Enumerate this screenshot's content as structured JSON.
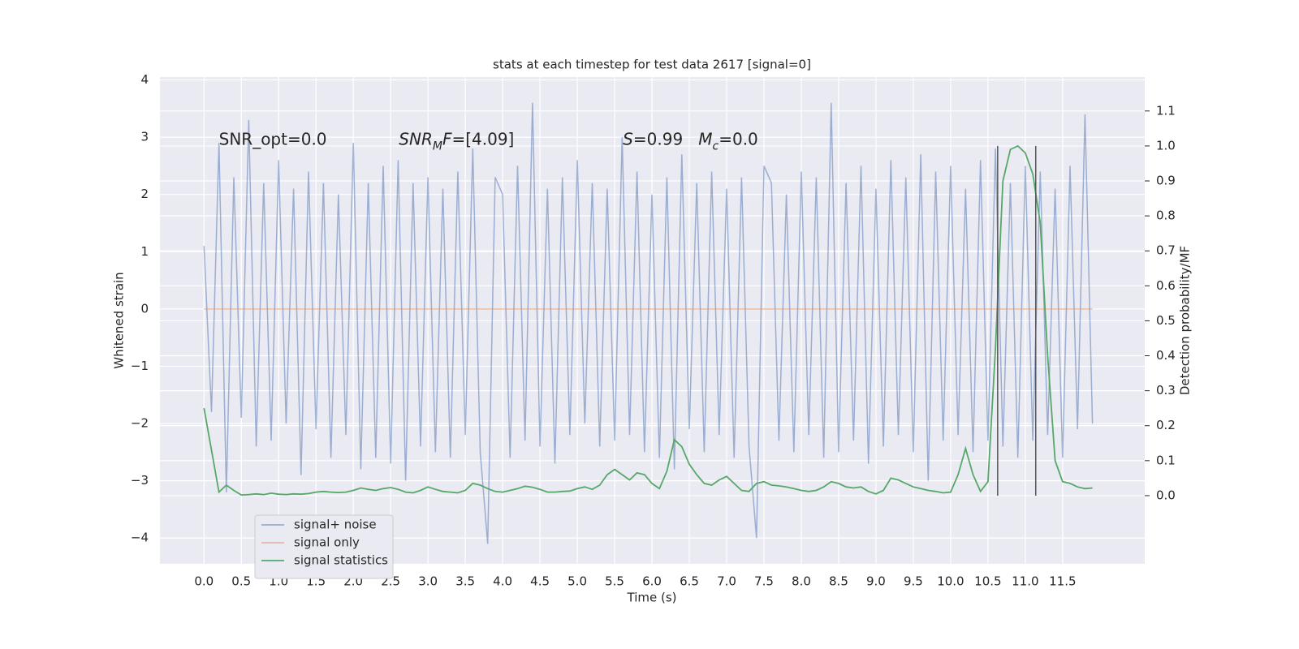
{
  "chart_data": {
    "type": "line",
    "title": "stats at each timestep for test data 2617 [signal=0]",
    "xlabel": "Time (s)",
    "ylabel": "Whitened strain",
    "y2label": "Detection probability/MF",
    "xlim": [
      -0.59,
      12.6
    ],
    "ylim": [
      -4.45,
      4.05
    ],
    "y2lim": [
      -0.195,
      1.197
    ],
    "xticks": [
      {
        "value": 0,
        "label": "0.0"
      },
      0.5,
      {
        "value": 1,
        "label": "1.0"
      },
      1.5,
      {
        "value": 2,
        "label": "2.0"
      },
      2.5,
      {
        "value": 3,
        "label": "3.0"
      },
      3.5,
      {
        "value": 4,
        "label": "4.0"
      },
      4.5,
      {
        "value": 5,
        "label": "5.0"
      },
      5.5,
      {
        "value": 6,
        "label": "6.0"
      },
      6.5,
      {
        "value": 7,
        "label": "7.0"
      },
      7.5,
      {
        "value": 8,
        "label": "8.0"
      },
      8.5,
      {
        "value": 9,
        "label": "9.0"
      },
      9.5,
      {
        "value": 10,
        "label": "10.0"
      },
      10.5,
      {
        "value": 11,
        "label": "11.0"
      },
      11.5
    ],
    "yticks": [
      {
        "value": -4,
        "label": "−4"
      },
      {
        "value": -3,
        "label": "−3"
      },
      {
        "value": -2,
        "label": "−2"
      },
      {
        "value": -1,
        "label": "−1"
      },
      0,
      1,
      2,
      3,
      4
    ],
    "y2ticks": [
      {
        "value": 0,
        "label": "0.0"
      },
      0.1,
      0.2,
      0.3,
      0.4,
      0.5,
      0.6,
      0.7,
      0.8,
      0.9,
      {
        "value": 1,
        "label": "1.0"
      },
      1.1
    ],
    "grid": true,
    "legend": "lower left",
    "x": [
      0.0,
      0.1,
      0.2,
      0.3,
      0.4,
      0.5,
      0.6,
      0.7,
      0.8,
      0.9,
      1.0,
      1.1,
      1.2,
      1.3,
      1.4,
      1.5,
      1.6,
      1.7,
      1.8,
      1.9,
      2.0,
      2.1,
      2.2,
      2.3,
      2.4,
      2.5,
      2.6,
      2.7,
      2.8,
      2.9,
      3.0,
      3.1,
      3.2,
      3.3,
      3.4,
      3.5,
      3.6,
      3.7,
      3.8,
      3.9,
      4.0,
      4.1,
      4.2,
      4.3,
      4.4,
      4.5,
      4.6,
      4.7,
      4.8,
      4.9,
      5.0,
      5.1,
      5.2,
      5.3,
      5.4,
      5.5,
      5.6,
      5.7,
      5.8,
      5.9,
      6.0,
      6.1,
      6.2,
      6.3,
      6.4,
      6.5,
      6.6,
      6.7,
      6.8,
      6.9,
      7.0,
      7.1,
      7.2,
      7.3,
      7.4,
      7.5,
      7.6,
      7.7,
      7.8,
      7.9,
      8.0,
      8.1,
      8.2,
      8.3,
      8.4,
      8.5,
      8.6,
      8.7,
      8.8,
      8.9,
      9.0,
      9.1,
      9.2,
      9.3,
      9.4,
      9.5,
      9.6,
      9.7,
      9.8,
      9.9,
      10.0,
      10.1,
      10.2,
      10.3,
      10.4,
      10.5,
      10.6,
      10.7,
      10.8,
      10.9,
      11.0,
      11.1,
      11.2,
      11.3,
      11.4,
      11.5,
      11.6,
      11.7,
      11.8,
      11.9
    ],
    "series": [
      {
        "name": "signal+ noise",
        "color": "#4c72b0",
        "opacity": 0.5,
        "values": [
          1.1,
          -1.8,
          2.9,
          -3.2,
          2.3,
          -1.9,
          3.3,
          -2.4,
          2.2,
          -2.3,
          2.6,
          -2.0,
          2.1,
          -2.9,
          2.4,
          -2.1,
          2.2,
          -2.6,
          2.0,
          -2.2,
          2.9,
          -2.8,
          2.2,
          -2.6,
          2.5,
          -2.7,
          2.6,
          -3.0,
          2.2,
          -2.4,
          2.3,
          -2.5,
          2.1,
          -2.6,
          2.4,
          -2.2,
          2.8,
          -2.5,
          -4.1,
          2.3,
          2.0,
          -2.6,
          2.5,
          -2.3,
          3.6,
          -2.4,
          2.1,
          -2.7,
          2.3,
          -2.2,
          2.6,
          -2.0,
          2.2,
          -2.4,
          2.1,
          -2.3,
          3.0,
          -2.2,
          2.4,
          -2.5,
          2.0,
          -2.6,
          2.3,
          -2.8,
          2.7,
          -2.1,
          2.2,
          -2.5,
          2.4,
          -2.2,
          2.1,
          -2.6,
          2.3,
          -2.4,
          -4.0,
          2.5,
          2.2,
          -2.3,
          2.0,
          -2.5,
          2.4,
          -2.2,
          2.3,
          -2.6,
          3.6,
          -2.5,
          2.2,
          -2.3,
          2.5,
          -2.7,
          2.1,
          -2.4,
          2.6,
          -2.2,
          2.3,
          -2.5,
          2.7,
          -3.0,
          2.4,
          -2.3,
          2.5,
          -2.2,
          2.1,
          -2.5,
          2.6,
          -2.3,
          2.8,
          -2.4,
          2.2,
          -2.6,
          2.5,
          -2.3,
          2.4,
          -2.2,
          2.1,
          -2.6,
          2.5,
          -2.1,
          3.4,
          -2.0
        ]
      },
      {
        "name": "signal only",
        "color": "#dd8452",
        "opacity": 0.5,
        "x": [
          0.0,
          11.9
        ],
        "values": [
          0,
          0
        ]
      },
      {
        "name": "signal statistics",
        "color": "#55a868",
        "opacity": 1,
        "axis": "y2",
        "values": [
          0.25,
          0.13,
          0.01,
          0.03,
          0.015,
          0.002,
          0.003,
          0.005,
          0.003,
          0.007,
          0.004,
          0.003,
          0.005,
          0.004,
          0.006,
          0.01,
          0.012,
          0.01,
          0.009,
          0.01,
          0.015,
          0.022,
          0.018,
          0.015,
          0.02,
          0.023,
          0.018,
          0.01,
          0.008,
          0.015,
          0.025,
          0.018,
          0.012,
          0.01,
          0.008,
          0.015,
          0.035,
          0.03,
          0.02,
          0.012,
          0.01,
          0.015,
          0.02,
          0.027,
          0.024,
          0.018,
          0.01,
          0.01,
          0.012,
          0.013,
          0.02,
          0.025,
          0.018,
          0.03,
          0.06,
          0.075,
          0.06,
          0.045,
          0.065,
          0.06,
          0.035,
          0.02,
          0.07,
          0.16,
          0.14,
          0.09,
          0.06,
          0.035,
          0.03,
          0.045,
          0.055,
          0.035,
          0.015,
          0.012,
          0.035,
          0.04,
          0.03,
          0.028,
          0.025,
          0.02,
          0.015,
          0.012,
          0.015,
          0.025,
          0.04,
          0.035,
          0.025,
          0.022,
          0.025,
          0.012,
          0.005,
          0.015,
          0.05,
          0.045,
          0.035,
          0.025,
          0.02,
          0.015,
          0.012,
          0.008,
          0.01,
          0.06,
          0.135,
          0.06,
          0.012,
          0.04,
          0.42,
          0.9,
          0.99,
          1.0,
          0.98,
          0.92,
          0.78,
          0.4,
          0.1,
          0.04,
          0.035,
          0.025,
          0.02,
          0.022
        ]
      }
    ],
    "vlines": {
      "x": [
        10.63,
        11.14
      ],
      "y2": [
        0,
        1.0
      ],
      "color": "#555555"
    },
    "annotations": [
      {
        "x": 0.2,
        "y": 2.95,
        "parts": [
          {
            "t": "SNR_opt=0.0"
          }
        ]
      },
      {
        "x": 2.61,
        "y": 2.95,
        "parts": [
          {
            "t": "SNR",
            "italic": true
          },
          {
            "t": "M",
            "italic": true,
            "sub": true
          },
          {
            "t": "F",
            "italic": true
          },
          {
            "t": "=[4.09]"
          }
        ]
      },
      {
        "x": 5.61,
        "y": 2.95,
        "parts": [
          {
            "t": "S",
            "italic": true
          },
          {
            "t": "=0.99   "
          },
          {
            "t": "M",
            "italic": true
          },
          {
            "t": "c",
            "italic": true,
            "sub": true
          },
          {
            "t": "=0.0"
          }
        ]
      }
    ]
  }
}
